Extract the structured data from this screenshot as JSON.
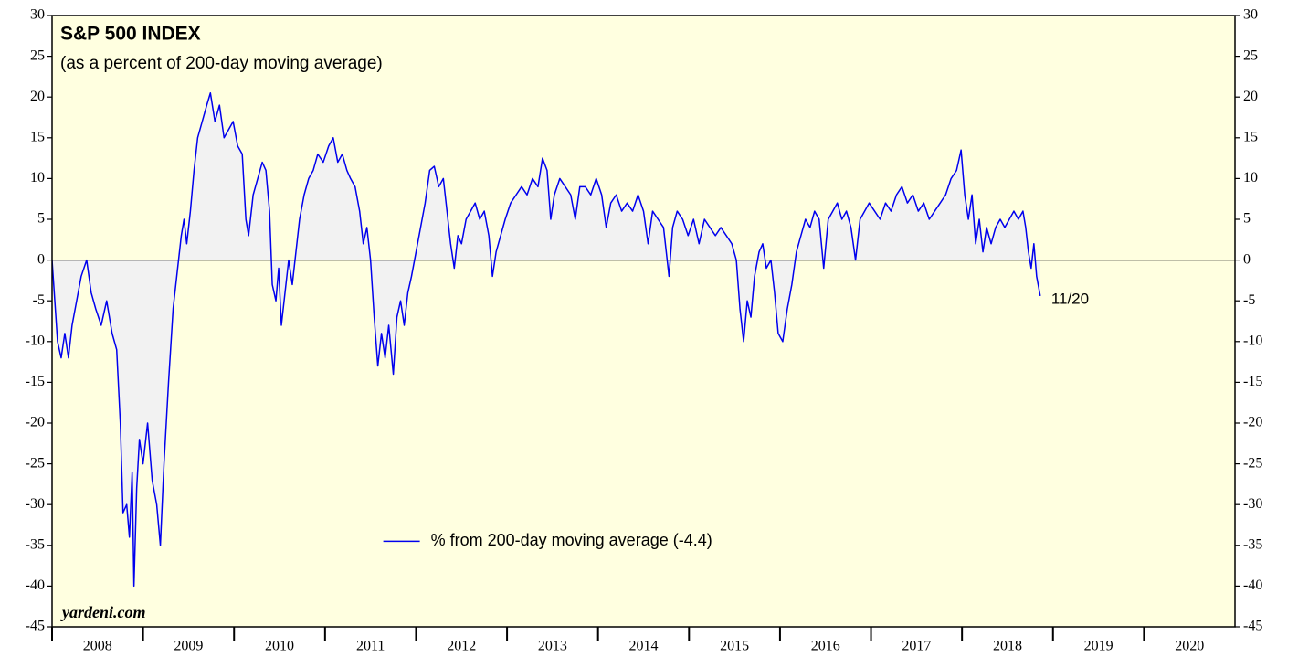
{
  "chart_data": {
    "type": "line",
    "title": "S&P 500 INDEX",
    "subtitle": "(as a percent of 200-day moving average)",
    "annotation": "11/20",
    "source": "yardeni.com",
    "x": [
      2008.0,
      2008.03,
      2008.06,
      2008.1,
      2008.14,
      2008.18,
      2008.22,
      2008.27,
      2008.32,
      2008.38,
      2008.43,
      2008.48,
      2008.54,
      2008.6,
      2008.66,
      2008.71,
      2008.75,
      2008.78,
      2008.82,
      2008.85,
      2008.88,
      2008.9,
      2008.93,
      2008.96,
      2009.0,
      2009.05,
      2009.1,
      2009.15,
      2009.19,
      2009.23,
      2009.28,
      2009.33,
      2009.38,
      2009.42,
      2009.45,
      2009.48,
      2009.52,
      2009.56,
      2009.6,
      2009.65,
      2009.7,
      2009.74,
      2009.79,
      2009.84,
      2009.89,
      2009.94,
      2009.99,
      2010.04,
      2010.09,
      2010.13,
      2010.16,
      2010.21,
      2010.26,
      2010.31,
      2010.35,
      2010.39,
      2010.42,
      2010.46,
      2010.49,
      2010.52,
      2010.56,
      2010.6,
      2010.64,
      2010.68,
      2010.72,
      2010.77,
      2010.82,
      2010.87,
      2010.92,
      2010.98,
      2011.04,
      2011.09,
      2011.14,
      2011.19,
      2011.24,
      2011.28,
      2011.33,
      2011.38,
      2011.42,
      2011.46,
      2011.5,
      2011.54,
      2011.58,
      2011.62,
      2011.66,
      2011.7,
      2011.75,
      2011.79,
      2011.83,
      2011.87,
      2011.91,
      2011.95,
      2012.0,
      2012.05,
      2012.1,
      2012.15,
      2012.2,
      2012.25,
      2012.3,
      2012.34,
      2012.38,
      2012.42,
      2012.46,
      2012.5,
      2012.55,
      2012.6,
      2012.65,
      2012.7,
      2012.75,
      2012.8,
      2012.84,
      2012.88,
      2012.93,
      2012.98,
      2013.04,
      2013.1,
      2013.16,
      2013.22,
      2013.28,
      2013.34,
      2013.39,
      2013.44,
      2013.48,
      2013.52,
      2013.58,
      2013.64,
      2013.7,
      2013.75,
      2013.8,
      2013.86,
      2013.92,
      2013.98,
      2014.04,
      2014.09,
      2014.14,
      2014.2,
      2014.26,
      2014.32,
      2014.38,
      2014.44,
      2014.5,
      2014.55,
      2014.6,
      2014.66,
      2014.72,
      2014.78,
      2014.82,
      2014.87,
      2014.93,
      2014.99,
      2015.05,
      2015.11,
      2015.17,
      2015.23,
      2015.29,
      2015.35,
      2015.41,
      2015.47,
      2015.52,
      2015.56,
      2015.6,
      2015.64,
      2015.68,
      2015.72,
      2015.77,
      2015.81,
      2015.85,
      2015.9,
      2015.94,
      2015.98,
      2016.03,
      2016.08,
      2016.13,
      2016.18,
      2016.23,
      2016.28,
      2016.33,
      2016.38,
      2016.43,
      2016.48,
      2016.53,
      2016.58,
      2016.63,
      2016.68,
      2016.73,
      2016.78,
      2016.83,
      2016.88,
      2016.93,
      2016.98,
      2017.04,
      2017.1,
      2017.16,
      2017.22,
      2017.28,
      2017.34,
      2017.4,
      2017.46,
      2017.52,
      2017.58,
      2017.64,
      2017.7,
      2017.76,
      2017.82,
      2017.88,
      2017.94,
      2017.99,
      2018.03,
      2018.07,
      2018.11,
      2018.15,
      2018.19,
      2018.23,
      2018.27,
      2018.32,
      2018.37,
      2018.42,
      2018.47,
      2018.52,
      2018.57,
      2018.62,
      2018.67,
      2018.7,
      2018.73,
      2018.76,
      2018.79,
      2018.82,
      2018.86
    ],
    "series": [
      {
        "name": "% from 200-day moving average (-4.4)",
        "color": "#0000ee",
        "values": [
          0,
          -5,
          -10,
          -12,
          -9,
          -12,
          -8,
          -5,
          -2,
          0,
          -4,
          -6,
          -8,
          -5,
          -9,
          -11,
          -20,
          -31,
          -30,
          -34,
          -26,
          -40,
          -28,
          -22,
          -25,
          -20,
          -27,
          -30,
          -35,
          -25,
          -15,
          -6,
          -1,
          3,
          5,
          2,
          6,
          11,
          15,
          17,
          19,
          20.5,
          17,
          19,
          15,
          16,
          17,
          14,
          13,
          5,
          3,
          8,
          10,
          12,
          11,
          6,
          -3,
          -5,
          -1,
          -8,
          -4,
          0,
          -3,
          1,
          5,
          8,
          10,
          11,
          13,
          12,
          14,
          15,
          12,
          13,
          11,
          10,
          9,
          6,
          2,
          4,
          0,
          -7,
          -13,
          -9,
          -12,
          -8,
          -14,
          -7,
          -5,
          -8,
          -4,
          -2,
          1,
          4,
          7,
          11,
          11.5,
          9,
          10,
          6,
          2,
          -1,
          3,
          2,
          5,
          6,
          7,
          5,
          6,
          3,
          -2,
          1,
          3,
          5,
          7,
          8,
          9,
          8,
          10,
          9,
          12.5,
          11,
          5,
          8,
          10,
          9,
          8,
          5,
          9,
          9,
          8,
          10,
          8,
          4,
          7,
          8,
          6,
          7,
          6,
          8,
          6,
          2,
          6,
          5,
          4,
          -2,
          4,
          6,
          5,
          3,
          5,
          2,
          5,
          4,
          3,
          4,
          3,
          2,
          0,
          -6,
          -10,
          -5,
          -7,
          -2,
          1,
          2,
          -1,
          0,
          -4,
          -9,
          -10,
          -6,
          -3,
          1,
          3,
          5,
          4,
          6,
          5,
          -1,
          5,
          6,
          7,
          5,
          6,
          4,
          0,
          5,
          6,
          7,
          6,
          5,
          7,
          6,
          8,
          9,
          7,
          8,
          6,
          7,
          5,
          6,
          7,
          8,
          10,
          11,
          13.5,
          8,
          5,
          8,
          2,
          5,
          1,
          4,
          2,
          4,
          5,
          4,
          5,
          6,
          5,
          6,
          4,
          1,
          -1,
          2,
          -2,
          -4.4
        ]
      }
    ],
    "xlim": [
      2008,
      2021
    ],
    "xticks": [
      {
        "value": 2008,
        "label": "2008"
      },
      {
        "value": 2009,
        "label": "2009"
      },
      {
        "value": 2010,
        "label": "2010"
      },
      {
        "value": 2011,
        "label": "2011"
      },
      {
        "value": 2012,
        "label": "2012"
      },
      {
        "value": 2013,
        "label": "2013"
      },
      {
        "value": 2014,
        "label": "2014"
      },
      {
        "value": 2015,
        "label": "2015"
      },
      {
        "value": 2016,
        "label": "2016"
      },
      {
        "value": 2017,
        "label": "2017"
      },
      {
        "value": 2018,
        "label": "2018"
      },
      {
        "value": 2019,
        "label": "2019"
      },
      {
        "value": 2020,
        "label": "2020"
      }
    ],
    "ylim": [
      -45,
      30
    ],
    "yticks": [
      -45,
      -40,
      -35,
      -30,
      -25,
      -20,
      -15,
      -10,
      -5,
      0,
      5,
      10,
      15,
      20,
      25,
      30
    ],
    "mirror_y_axis": true,
    "zero_line": true,
    "fill_to_zero": "#f2f2f2",
    "plot_background": "#ffffe0",
    "legend": "lower center"
  }
}
